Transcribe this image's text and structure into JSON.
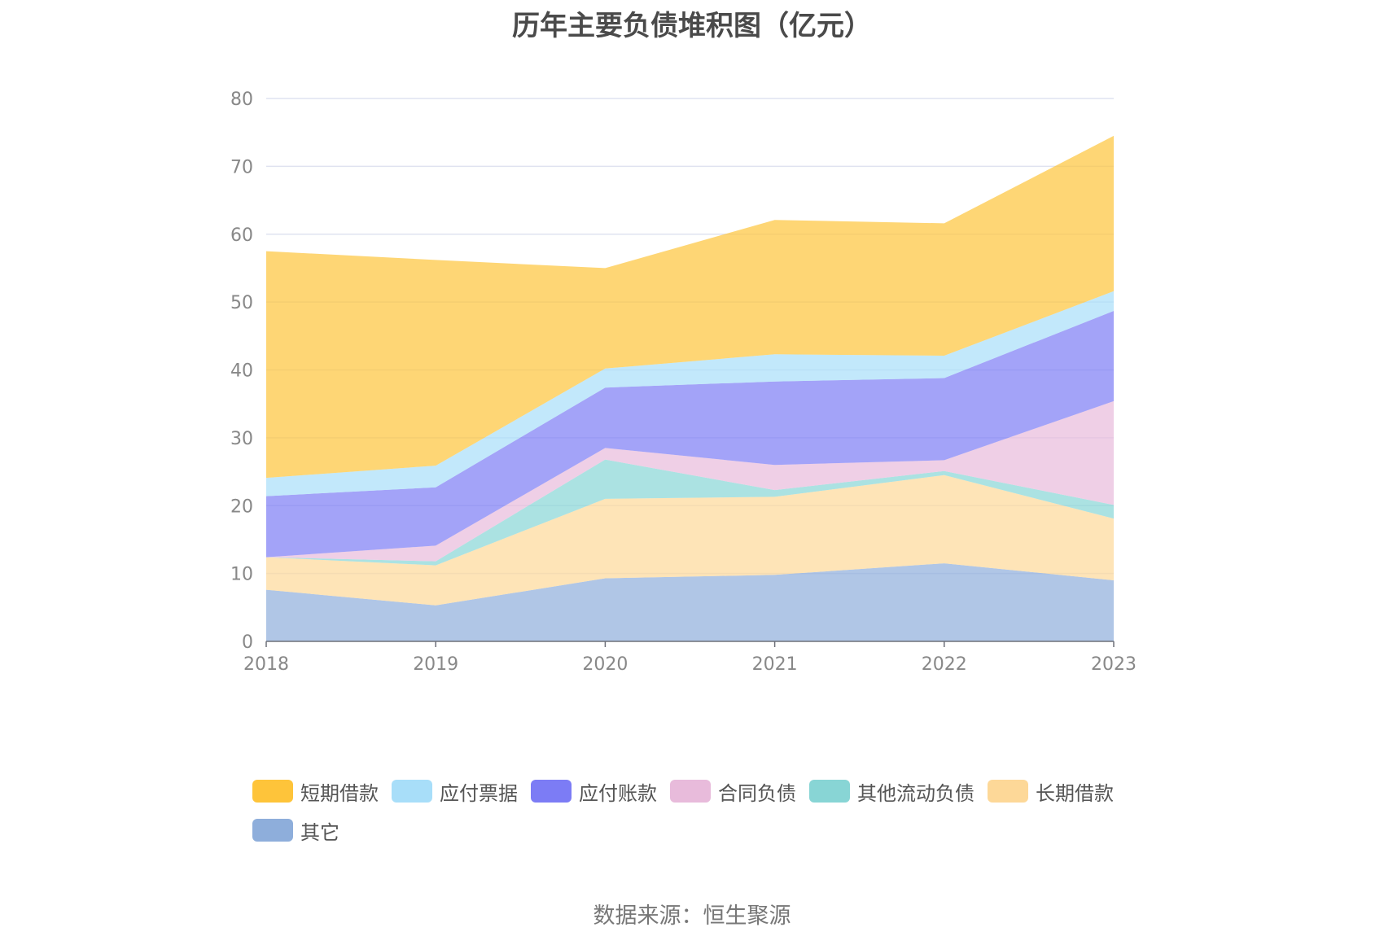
{
  "chart_data": {
    "type": "area",
    "stacked": true,
    "title": "历年主要负债堆积图（亿元）",
    "xlabel": "",
    "ylabel": "",
    "x": [
      "2018",
      "2019",
      "2020",
      "2021",
      "2022",
      "2023"
    ],
    "ylim": [
      0,
      80
    ],
    "yticks": [
      "0",
      "10",
      "20",
      "30",
      "40",
      "50",
      "60",
      "70",
      "80"
    ],
    "grid": true,
    "legend_position": "bottom",
    "series": [
      {
        "name": "其它",
        "color": "#8eaedb",
        "values": [
          7.6,
          5.3,
          9.3,
          9.8,
          11.5,
          9.0
        ]
      },
      {
        "name": "长期借款",
        "color": "#fdd898",
        "values": [
          4.8,
          5.9,
          11.7,
          11.5,
          13.0,
          9.1
        ]
      },
      {
        "name": "其他流动负债",
        "color": "#88d5d5",
        "values": [
          0.0,
          0.6,
          5.8,
          1.0,
          0.6,
          2.0
        ]
      },
      {
        "name": "合同负债",
        "color": "#e8bbdb",
        "values": [
          0.0,
          2.3,
          1.7,
          3.7,
          1.6,
          15.3
        ]
      },
      {
        "name": "应付账款",
        "color": "#7c7cf5",
        "values": [
          9.0,
          8.6,
          8.9,
          12.3,
          12.1,
          13.3
        ]
      },
      {
        "name": "应付票据",
        "color": "#a8def9",
        "values": [
          2.7,
          3.2,
          2.8,
          4.0,
          3.3,
          2.9
        ]
      },
      {
        "name": "短期借款",
        "color": "#fec43a",
        "values": [
          33.4,
          30.3,
          14.8,
          19.8,
          19.5,
          22.9
        ]
      }
    ],
    "legend_order": [
      "短期借款",
      "应付票据",
      "应付账款",
      "合同负债",
      "其他流动负债",
      "长期借款",
      "其它"
    ],
    "source": "数据来源：恒生聚源"
  }
}
